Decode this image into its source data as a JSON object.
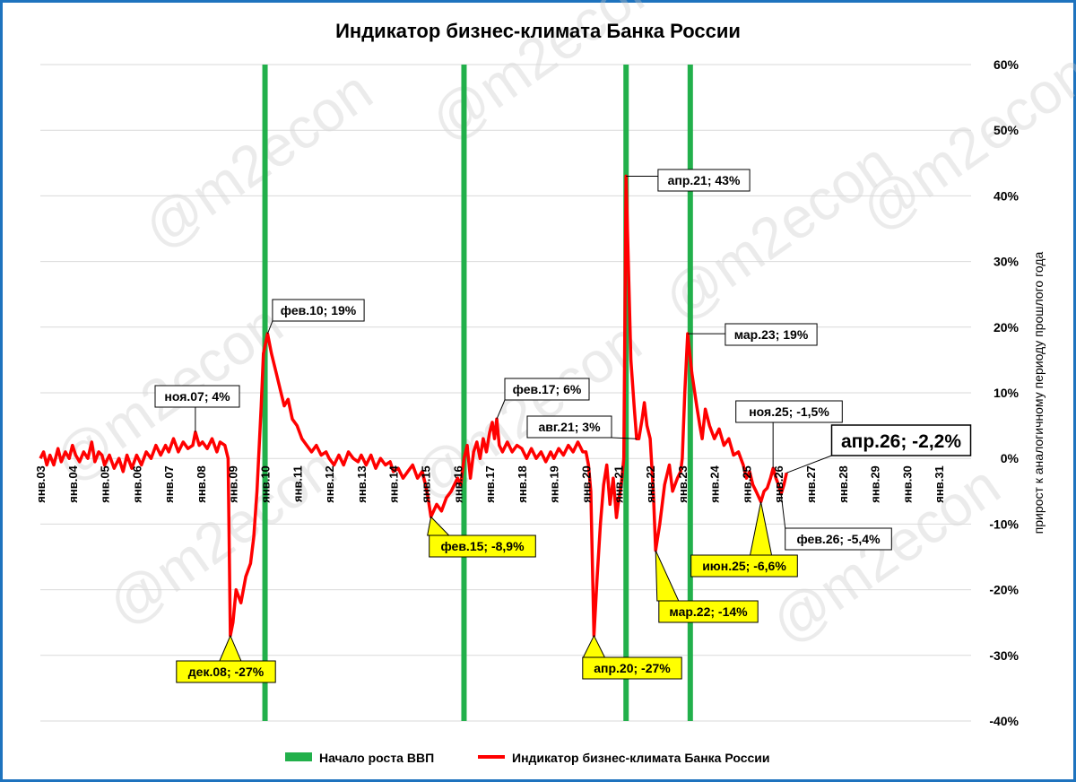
{
  "chart_data": {
    "type": "line",
    "title": "Индикатор бизнес-климата Банка России",
    "ylabel": "прирост к аналогичному периоду прошлого года",
    "ylim": [
      -40,
      60
    ],
    "y_ticks": [
      "60%",
      "50%",
      "40%",
      "30%",
      "20%",
      "10%",
      "0%",
      "-10%",
      "-20%",
      "-30%",
      "-40%"
    ],
    "x_range": [
      2003,
      2032
    ],
    "x_ticks": [
      "янв.03",
      "янв.04",
      "янв.05",
      "янв.06",
      "янв.07",
      "янв.08",
      "янв.09",
      "янв.10",
      "янв.11",
      "янв.12",
      "янв.13",
      "янв.14",
      "янв.15",
      "янв.16",
      "янв.17",
      "янв.18",
      "янв.19",
      "янв.20",
      "янв.21",
      "янв.22",
      "янв.23",
      "янв.24",
      "янв.25",
      "янв.26",
      "янв.27",
      "янв.28",
      "янв.29",
      "янв.30",
      "янв.31"
    ],
    "grid": true,
    "legend_position": "bottom",
    "series": [
      {
        "name": "Индикатор бизнес-климата Банка России",
        "color": "#ff0000",
        "points": [
          [
            2003.0,
            0
          ],
          [
            2003.1,
            1
          ],
          [
            2003.2,
            -1
          ],
          [
            2003.3,
            0.5
          ],
          [
            2003.42,
            -1
          ],
          [
            2003.55,
            1.5
          ],
          [
            2003.65,
            -0.5
          ],
          [
            2003.78,
            1
          ],
          [
            2003.9,
            0
          ],
          [
            2004.0,
            2
          ],
          [
            2004.1,
            0.5
          ],
          [
            2004.22,
            -0.5
          ],
          [
            2004.35,
            1
          ],
          [
            2004.48,
            0
          ],
          [
            2004.6,
            2.5
          ],
          [
            2004.7,
            -0.5
          ],
          [
            2004.82,
            1
          ],
          [
            2004.92,
            0.5
          ],
          [
            2005.0,
            -1
          ],
          [
            2005.15,
            0.5
          ],
          [
            2005.3,
            -1.5
          ],
          [
            2005.45,
            0
          ],
          [
            2005.58,
            -2
          ],
          [
            2005.7,
            0.5
          ],
          [
            2005.85,
            -1.5
          ],
          [
            2006.0,
            0.5
          ],
          [
            2006.15,
            -1
          ],
          [
            2006.3,
            1
          ],
          [
            2006.45,
            0
          ],
          [
            2006.6,
            2
          ],
          [
            2006.75,
            0.5
          ],
          [
            2006.9,
            2
          ],
          [
            2007.0,
            1
          ],
          [
            2007.15,
            3
          ],
          [
            2007.3,
            1
          ],
          [
            2007.45,
            2.5
          ],
          [
            2007.6,
            1.5
          ],
          [
            2007.75,
            2
          ],
          [
            2007.83,
            4
          ],
          [
            2007.95,
            2
          ],
          [
            2008.05,
            2.5
          ],
          [
            2008.2,
            1.5
          ],
          [
            2008.35,
            3
          ],
          [
            2008.5,
            1
          ],
          [
            2008.6,
            2.5
          ],
          [
            2008.75,
            2
          ],
          [
            2008.85,
            0
          ],
          [
            2008.92,
            -27
          ],
          [
            2009.0,
            -25
          ],
          [
            2009.1,
            -20
          ],
          [
            2009.25,
            -22
          ],
          [
            2009.4,
            -18
          ],
          [
            2009.55,
            -16
          ],
          [
            2009.65,
            -12
          ],
          [
            2009.75,
            -5
          ],
          [
            2009.88,
            8
          ],
          [
            2009.95,
            16
          ],
          [
            2010.08,
            19
          ],
          [
            2010.2,
            16
          ],
          [
            2010.35,
            13
          ],
          [
            2010.5,
            10
          ],
          [
            2010.6,
            8
          ],
          [
            2010.72,
            9
          ],
          [
            2010.85,
            6
          ],
          [
            2011.0,
            5
          ],
          [
            2011.15,
            3
          ],
          [
            2011.3,
            2
          ],
          [
            2011.45,
            1
          ],
          [
            2011.6,
            2
          ],
          [
            2011.75,
            0.5
          ],
          [
            2011.9,
            1
          ],
          [
            2012.0,
            0
          ],
          [
            2012.15,
            -1
          ],
          [
            2012.3,
            0.5
          ],
          [
            2012.45,
            -1
          ],
          [
            2012.6,
            1
          ],
          [
            2012.75,
            0
          ],
          [
            2012.9,
            -0.5
          ],
          [
            2013.0,
            0.5
          ],
          [
            2013.15,
            -1
          ],
          [
            2013.3,
            0.5
          ],
          [
            2013.45,
            -1.5
          ],
          [
            2013.6,
            0
          ],
          [
            2013.75,
            -1
          ],
          [
            2013.9,
            -0.5
          ],
          [
            2014.0,
            -2
          ],
          [
            2014.15,
            -1.5
          ],
          [
            2014.3,
            -3
          ],
          [
            2014.45,
            -2
          ],
          [
            2014.6,
            -1
          ],
          [
            2014.75,
            -3
          ],
          [
            2014.9,
            -2
          ],
          [
            2015.0,
            -4
          ],
          [
            2015.08,
            -6
          ],
          [
            2015.17,
            -8.9
          ],
          [
            2015.35,
            -7
          ],
          [
            2015.5,
            -8
          ],
          [
            2015.65,
            -6
          ],
          [
            2015.8,
            -5
          ],
          [
            2016.0,
            -3
          ],
          [
            2016.1,
            -4
          ],
          [
            2016.2,
            0
          ],
          [
            2016.3,
            2
          ],
          [
            2016.4,
            -3
          ],
          [
            2016.5,
            1
          ],
          [
            2016.6,
            2.5
          ],
          [
            2016.7,
            0
          ],
          [
            2016.8,
            3
          ],
          [
            2016.9,
            1
          ],
          [
            2017.0,
            4
          ],
          [
            2017.08,
            5.5
          ],
          [
            2017.15,
            3
          ],
          [
            2017.22,
            6
          ],
          [
            2017.3,
            2
          ],
          [
            2017.4,
            1
          ],
          [
            2017.55,
            2.5
          ],
          [
            2017.7,
            1
          ],
          [
            2017.85,
            2
          ],
          [
            2018.0,
            1.5
          ],
          [
            2018.15,
            0
          ],
          [
            2018.3,
            1.5
          ],
          [
            2018.45,
            0
          ],
          [
            2018.6,
            1
          ],
          [
            2018.75,
            -0.5
          ],
          [
            2018.9,
            1
          ],
          [
            2019.0,
            0
          ],
          [
            2019.15,
            1.5
          ],
          [
            2019.3,
            0.5
          ],
          [
            2019.45,
            2
          ],
          [
            2019.6,
            1
          ],
          [
            2019.75,
            2.5
          ],
          [
            2019.9,
            1
          ],
          [
            2020.0,
            1
          ],
          [
            2020.08,
            -1
          ],
          [
            2020.15,
            -5
          ],
          [
            2020.25,
            -27
          ],
          [
            2020.35,
            -18
          ],
          [
            2020.45,
            -10
          ],
          [
            2020.55,
            -4
          ],
          [
            2020.65,
            -1
          ],
          [
            2020.75,
            -7
          ],
          [
            2020.85,
            -3
          ],
          [
            2020.95,
            -9
          ],
          [
            2021.0,
            -7
          ],
          [
            2021.1,
            -4
          ],
          [
            2021.18,
            0
          ],
          [
            2021.25,
            43
          ],
          [
            2021.32,
            30
          ],
          [
            2021.4,
            15
          ],
          [
            2021.5,
            8
          ],
          [
            2021.58,
            3
          ],
          [
            2021.65,
            3
          ],
          [
            2021.75,
            6
          ],
          [
            2021.82,
            8.5
          ],
          [
            2021.9,
            5
          ],
          [
            2022.0,
            3
          ],
          [
            2022.1,
            -5
          ],
          [
            2022.17,
            -14
          ],
          [
            2022.3,
            -10
          ],
          [
            2022.45,
            -4
          ],
          [
            2022.6,
            -1
          ],
          [
            2022.7,
            -5
          ],
          [
            2022.85,
            -3
          ],
          [
            2022.95,
            -2
          ],
          [
            2023.0,
            0
          ],
          [
            2023.08,
            10
          ],
          [
            2023.17,
            19
          ],
          [
            2023.3,
            13
          ],
          [
            2023.45,
            8
          ],
          [
            2023.55,
            5
          ],
          [
            2023.62,
            3
          ],
          [
            2023.72,
            7.5
          ],
          [
            2023.85,
            5
          ],
          [
            2024.0,
            3
          ],
          [
            2024.15,
            4.5
          ],
          [
            2024.3,
            2
          ],
          [
            2024.45,
            3
          ],
          [
            2024.6,
            0.5
          ],
          [
            2024.75,
            1
          ],
          [
            2024.9,
            -1
          ],
          [
            2025.0,
            -3
          ],
          [
            2025.1,
            -2
          ],
          [
            2025.2,
            -4
          ],
          [
            2025.3,
            -5
          ],
          [
            2025.45,
            -6.6
          ],
          [
            2025.55,
            -5
          ],
          [
            2025.65,
            -4.5
          ],
          [
            2025.75,
            -3
          ],
          [
            2025.83,
            -1.5
          ],
          [
            2025.92,
            -3
          ],
          [
            2026.0,
            -4
          ],
          [
            2026.08,
            -5.4
          ],
          [
            2026.17,
            -4
          ],
          [
            2026.25,
            -2.2
          ]
        ]
      }
    ],
    "gdp_growth_starts": {
      "name": "Начало роста ВВП",
      "color": "#22b04b",
      "x": [
        2010.0,
        2016.2,
        2021.25,
        2023.25
      ]
    },
    "annotations": [
      {
        "text": "ноя.07; 4%",
        "x": 2007.83,
        "y": 4,
        "style": "white"
      },
      {
        "text": "фев.10; 19%",
        "x": 2010.08,
        "y": 19,
        "style": "white"
      },
      {
        "text": "дек.08; -27%",
        "x": 2008.92,
        "y": -27,
        "style": "yellow"
      },
      {
        "text": "фев.15; -8,9%",
        "x": 2015.17,
        "y": -8.9,
        "style": "yellow"
      },
      {
        "text": "фев.17; 6%",
        "x": 2017.22,
        "y": 6,
        "style": "white"
      },
      {
        "text": "авг.21; 3%",
        "x": 2021.58,
        "y": 3,
        "style": "white"
      },
      {
        "text": "апр.20; -27%",
        "x": 2020.25,
        "y": -27,
        "style": "yellow"
      },
      {
        "text": "апр.21; 43%",
        "x": 2021.25,
        "y": 43,
        "style": "white"
      },
      {
        "text": "мар.22; -14%",
        "x": 2022.17,
        "y": -14,
        "style": "yellow"
      },
      {
        "text": "мар.23; 19%",
        "x": 2023.17,
        "y": 19,
        "style": "white"
      },
      {
        "text": "ноя.25; -1,5%",
        "x": 2025.83,
        "y": -1.5,
        "style": "white"
      },
      {
        "text": "июн.25; -6,6%",
        "x": 2025.45,
        "y": -6.6,
        "style": "yellow"
      },
      {
        "text": "фев.26; -5,4%",
        "x": 2026.08,
        "y": -5.4,
        "style": "white"
      },
      {
        "text": "апр.26; -2,2%",
        "x": 2026.25,
        "y": -2.2,
        "style": "big"
      }
    ]
  },
  "watermark": "@m2econ"
}
